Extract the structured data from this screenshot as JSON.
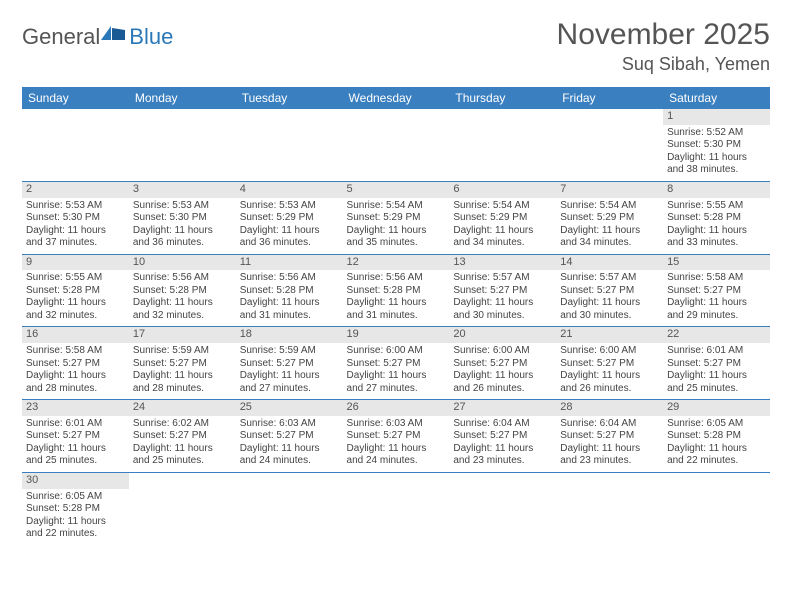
{
  "logo": {
    "general": "General",
    "blue": "Blue"
  },
  "title": "November 2025",
  "location": "Suq Sibah, Yemen",
  "colors": {
    "header_bg": "#3a7fbf",
    "header_text": "#ffffff",
    "daynum_bg": "#e7e7e7",
    "row_divider": "#3a7fbf",
    "logo_blue": "#2b78b8",
    "text": "#444444"
  },
  "day_headers": [
    "Sunday",
    "Monday",
    "Tuesday",
    "Wednesday",
    "Thursday",
    "Friday",
    "Saturday"
  ],
  "weeks": [
    [
      {
        "day": "",
        "sunrise": "",
        "sunset": "",
        "daylight1": "",
        "daylight2": ""
      },
      {
        "day": "",
        "sunrise": "",
        "sunset": "",
        "daylight1": "",
        "daylight2": ""
      },
      {
        "day": "",
        "sunrise": "",
        "sunset": "",
        "daylight1": "",
        "daylight2": ""
      },
      {
        "day": "",
        "sunrise": "",
        "sunset": "",
        "daylight1": "",
        "daylight2": ""
      },
      {
        "day": "",
        "sunrise": "",
        "sunset": "",
        "daylight1": "",
        "daylight2": ""
      },
      {
        "day": "",
        "sunrise": "",
        "sunset": "",
        "daylight1": "",
        "daylight2": ""
      },
      {
        "day": "1",
        "sunrise": "Sunrise: 5:52 AM",
        "sunset": "Sunset: 5:30 PM",
        "daylight1": "Daylight: 11 hours",
        "daylight2": "and 38 minutes."
      }
    ],
    [
      {
        "day": "2",
        "sunrise": "Sunrise: 5:53 AM",
        "sunset": "Sunset: 5:30 PM",
        "daylight1": "Daylight: 11 hours",
        "daylight2": "and 37 minutes."
      },
      {
        "day": "3",
        "sunrise": "Sunrise: 5:53 AM",
        "sunset": "Sunset: 5:30 PM",
        "daylight1": "Daylight: 11 hours",
        "daylight2": "and 36 minutes."
      },
      {
        "day": "4",
        "sunrise": "Sunrise: 5:53 AM",
        "sunset": "Sunset: 5:29 PM",
        "daylight1": "Daylight: 11 hours",
        "daylight2": "and 36 minutes."
      },
      {
        "day": "5",
        "sunrise": "Sunrise: 5:54 AM",
        "sunset": "Sunset: 5:29 PM",
        "daylight1": "Daylight: 11 hours",
        "daylight2": "and 35 minutes."
      },
      {
        "day": "6",
        "sunrise": "Sunrise: 5:54 AM",
        "sunset": "Sunset: 5:29 PM",
        "daylight1": "Daylight: 11 hours",
        "daylight2": "and 34 minutes."
      },
      {
        "day": "7",
        "sunrise": "Sunrise: 5:54 AM",
        "sunset": "Sunset: 5:29 PM",
        "daylight1": "Daylight: 11 hours",
        "daylight2": "and 34 minutes."
      },
      {
        "day": "8",
        "sunrise": "Sunrise: 5:55 AM",
        "sunset": "Sunset: 5:28 PM",
        "daylight1": "Daylight: 11 hours",
        "daylight2": "and 33 minutes."
      }
    ],
    [
      {
        "day": "9",
        "sunrise": "Sunrise: 5:55 AM",
        "sunset": "Sunset: 5:28 PM",
        "daylight1": "Daylight: 11 hours",
        "daylight2": "and 32 minutes."
      },
      {
        "day": "10",
        "sunrise": "Sunrise: 5:56 AM",
        "sunset": "Sunset: 5:28 PM",
        "daylight1": "Daylight: 11 hours",
        "daylight2": "and 32 minutes."
      },
      {
        "day": "11",
        "sunrise": "Sunrise: 5:56 AM",
        "sunset": "Sunset: 5:28 PM",
        "daylight1": "Daylight: 11 hours",
        "daylight2": "and 31 minutes."
      },
      {
        "day": "12",
        "sunrise": "Sunrise: 5:56 AM",
        "sunset": "Sunset: 5:28 PM",
        "daylight1": "Daylight: 11 hours",
        "daylight2": "and 31 minutes."
      },
      {
        "day": "13",
        "sunrise": "Sunrise: 5:57 AM",
        "sunset": "Sunset: 5:27 PM",
        "daylight1": "Daylight: 11 hours",
        "daylight2": "and 30 minutes."
      },
      {
        "day": "14",
        "sunrise": "Sunrise: 5:57 AM",
        "sunset": "Sunset: 5:27 PM",
        "daylight1": "Daylight: 11 hours",
        "daylight2": "and 30 minutes."
      },
      {
        "day": "15",
        "sunrise": "Sunrise: 5:58 AM",
        "sunset": "Sunset: 5:27 PM",
        "daylight1": "Daylight: 11 hours",
        "daylight2": "and 29 minutes."
      }
    ],
    [
      {
        "day": "16",
        "sunrise": "Sunrise: 5:58 AM",
        "sunset": "Sunset: 5:27 PM",
        "daylight1": "Daylight: 11 hours",
        "daylight2": "and 28 minutes."
      },
      {
        "day": "17",
        "sunrise": "Sunrise: 5:59 AM",
        "sunset": "Sunset: 5:27 PM",
        "daylight1": "Daylight: 11 hours",
        "daylight2": "and 28 minutes."
      },
      {
        "day": "18",
        "sunrise": "Sunrise: 5:59 AM",
        "sunset": "Sunset: 5:27 PM",
        "daylight1": "Daylight: 11 hours",
        "daylight2": "and 27 minutes."
      },
      {
        "day": "19",
        "sunrise": "Sunrise: 6:00 AM",
        "sunset": "Sunset: 5:27 PM",
        "daylight1": "Daylight: 11 hours",
        "daylight2": "and 27 minutes."
      },
      {
        "day": "20",
        "sunrise": "Sunrise: 6:00 AM",
        "sunset": "Sunset: 5:27 PM",
        "daylight1": "Daylight: 11 hours",
        "daylight2": "and 26 minutes."
      },
      {
        "day": "21",
        "sunrise": "Sunrise: 6:00 AM",
        "sunset": "Sunset: 5:27 PM",
        "daylight1": "Daylight: 11 hours",
        "daylight2": "and 26 minutes."
      },
      {
        "day": "22",
        "sunrise": "Sunrise: 6:01 AM",
        "sunset": "Sunset: 5:27 PM",
        "daylight1": "Daylight: 11 hours",
        "daylight2": "and 25 minutes."
      }
    ],
    [
      {
        "day": "23",
        "sunrise": "Sunrise: 6:01 AM",
        "sunset": "Sunset: 5:27 PM",
        "daylight1": "Daylight: 11 hours",
        "daylight2": "and 25 minutes."
      },
      {
        "day": "24",
        "sunrise": "Sunrise: 6:02 AM",
        "sunset": "Sunset: 5:27 PM",
        "daylight1": "Daylight: 11 hours",
        "daylight2": "and 25 minutes."
      },
      {
        "day": "25",
        "sunrise": "Sunrise: 6:03 AM",
        "sunset": "Sunset: 5:27 PM",
        "daylight1": "Daylight: 11 hours",
        "daylight2": "and 24 minutes."
      },
      {
        "day": "26",
        "sunrise": "Sunrise: 6:03 AM",
        "sunset": "Sunset: 5:27 PM",
        "daylight1": "Daylight: 11 hours",
        "daylight2": "and 24 minutes."
      },
      {
        "day": "27",
        "sunrise": "Sunrise: 6:04 AM",
        "sunset": "Sunset: 5:27 PM",
        "daylight1": "Daylight: 11 hours",
        "daylight2": "and 23 minutes."
      },
      {
        "day": "28",
        "sunrise": "Sunrise: 6:04 AM",
        "sunset": "Sunset: 5:27 PM",
        "daylight1": "Daylight: 11 hours",
        "daylight2": "and 23 minutes."
      },
      {
        "day": "29",
        "sunrise": "Sunrise: 6:05 AM",
        "sunset": "Sunset: 5:28 PM",
        "daylight1": "Daylight: 11 hours",
        "daylight2": "and 22 minutes."
      }
    ],
    [
      {
        "day": "30",
        "sunrise": "Sunrise: 6:05 AM",
        "sunset": "Sunset: 5:28 PM",
        "daylight1": "Daylight: 11 hours",
        "daylight2": "and 22 minutes."
      },
      {
        "day": "",
        "sunrise": "",
        "sunset": "",
        "daylight1": "",
        "daylight2": ""
      },
      {
        "day": "",
        "sunrise": "",
        "sunset": "",
        "daylight1": "",
        "daylight2": ""
      },
      {
        "day": "",
        "sunrise": "",
        "sunset": "",
        "daylight1": "",
        "daylight2": ""
      },
      {
        "day": "",
        "sunrise": "",
        "sunset": "",
        "daylight1": "",
        "daylight2": ""
      },
      {
        "day": "",
        "sunrise": "",
        "sunset": "",
        "daylight1": "",
        "daylight2": ""
      },
      {
        "day": "",
        "sunrise": "",
        "sunset": "",
        "daylight1": "",
        "daylight2": ""
      }
    ]
  ]
}
